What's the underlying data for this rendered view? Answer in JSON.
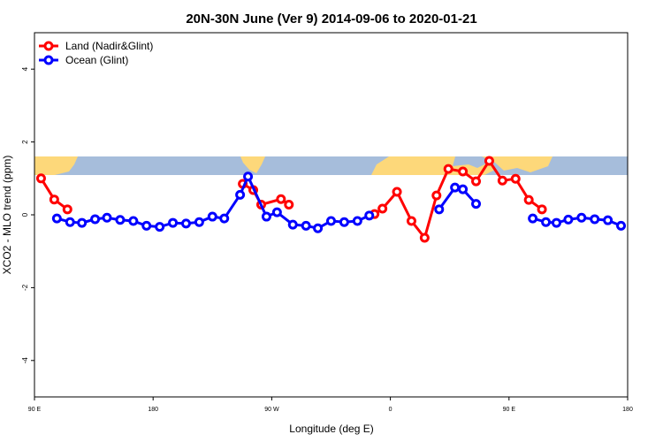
{
  "chart_data": {
    "type": "line",
    "title": "20N-30N June (Ver 9)   2014-09-06 to 2020-01-21",
    "xlabel": "Longitude (deg E)",
    "ylabel": "XCO2 - MLO trend (ppm)",
    "xlim": [
      90,
      540
    ],
    "ylim": [
      -5,
      5
    ],
    "xticks": [
      {
        "value": 90,
        "label": "90 E"
      },
      180,
      {
        "value": 270,
        "label": "90 W"
      },
      {
        "value": 360,
        "label": "0"
      },
      {
        "value": 450,
        "label": "90 E"
      },
      180
    ],
    "yticks": [
      -4,
      -2,
      0,
      2,
      4
    ],
    "legend": "top-left",
    "series": [
      {
        "name": "Land (Nadir&Glint)",
        "color": "#ff0000",
        "x": [
          95,
          105,
          115,
          null,
          248,
          256,
          262,
          277,
          283,
          null,
          348,
          354,
          365,
          376,
          386,
          395,
          404,
          415,
          425,
          435,
          445,
          455,
          465,
          475
        ],
        "values": [
          1.0,
          0.42,
          0.15,
          null,
          0.85,
          0.68,
          0.28,
          0.43,
          0.28,
          null,
          0.02,
          0.17,
          0.63,
          -0.17,
          -0.63,
          0.53,
          1.26,
          1.19,
          0.92,
          1.48,
          0.94,
          0.99,
          0.41,
          0.15
        ]
      },
      {
        "name": "Ocean (Glint)",
        "color": "#0000ff",
        "x": [
          107,
          117,
          126,
          136,
          145,
          155,
          165,
          175,
          185,
          195,
          205,
          215,
          225,
          234,
          246,
          252,
          266,
          274,
          286,
          296,
          305,
          315,
          325,
          335,
          344,
          null,
          397,
          409,
          415,
          425,
          null,
          468,
          478,
          486,
          495,
          505,
          515,
          525,
          535
        ],
        "values": [
          -0.1,
          -0.2,
          -0.22,
          -0.12,
          -0.08,
          -0.14,
          -0.17,
          -0.3,
          -0.33,
          -0.22,
          -0.24,
          -0.2,
          -0.05,
          -0.1,
          0.55,
          1.05,
          -0.05,
          0.07,
          -0.27,
          -0.3,
          -0.37,
          -0.17,
          -0.2,
          -0.17,
          -0.02,
          null,
          0.15,
          0.75,
          0.7,
          0.3,
          null,
          -0.1,
          -0.2,
          -0.22,
          -0.13,
          -0.08,
          -0.12,
          -0.15,
          -0.3
        ]
      }
    ]
  }
}
